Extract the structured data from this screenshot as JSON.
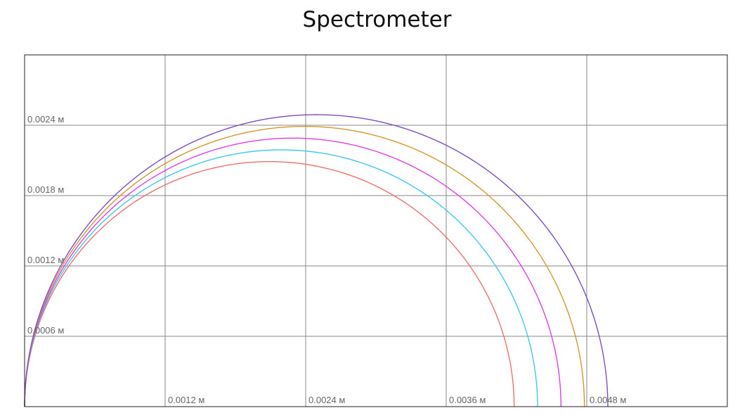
{
  "title": "Spectrometer",
  "chart_data": {
    "type": "line",
    "title": "Spectrometer",
    "unit": "м",
    "xlim": [
      0,
      0.006
    ],
    "ylim": [
      0,
      0.003
    ],
    "grid": true,
    "x_ticks": [
      "0.0012 м",
      "0.0024 м",
      "0.0036 м",
      "0.0048 м"
    ],
    "y_ticks": [
      "0.0024 м",
      "0.0018 м",
      "0.0012 м",
      "0.0006 м"
    ],
    "series": [
      {
        "color": "#f07070",
        "center_x": 0.00209,
        "center_y": 0.0,
        "radius": 0.00209,
        "x_max": 0.00418,
        "y_max": 0.00209
      },
      {
        "color": "#40c8f0",
        "center_x": 0.00219,
        "center_y": 0.0,
        "radius": 0.00219,
        "x_max": 0.00438,
        "y_max": 0.00219
      },
      {
        "color": "#e040e0",
        "center_x": 0.00229,
        "center_y": 0.0,
        "radius": 0.00229,
        "x_max": 0.00458,
        "y_max": 0.00229
      },
      {
        "color": "#d4982c",
        "center_x": 0.00239,
        "center_y": 0.0,
        "radius": 0.00239,
        "x_max": 0.00478,
        "y_max": 0.00239
      },
      {
        "color": "#7a4fc8",
        "center_x": 0.00249,
        "center_y": 0.0,
        "radius": 0.00249,
        "x_max": 0.00498,
        "y_max": 0.00249
      }
    ]
  }
}
